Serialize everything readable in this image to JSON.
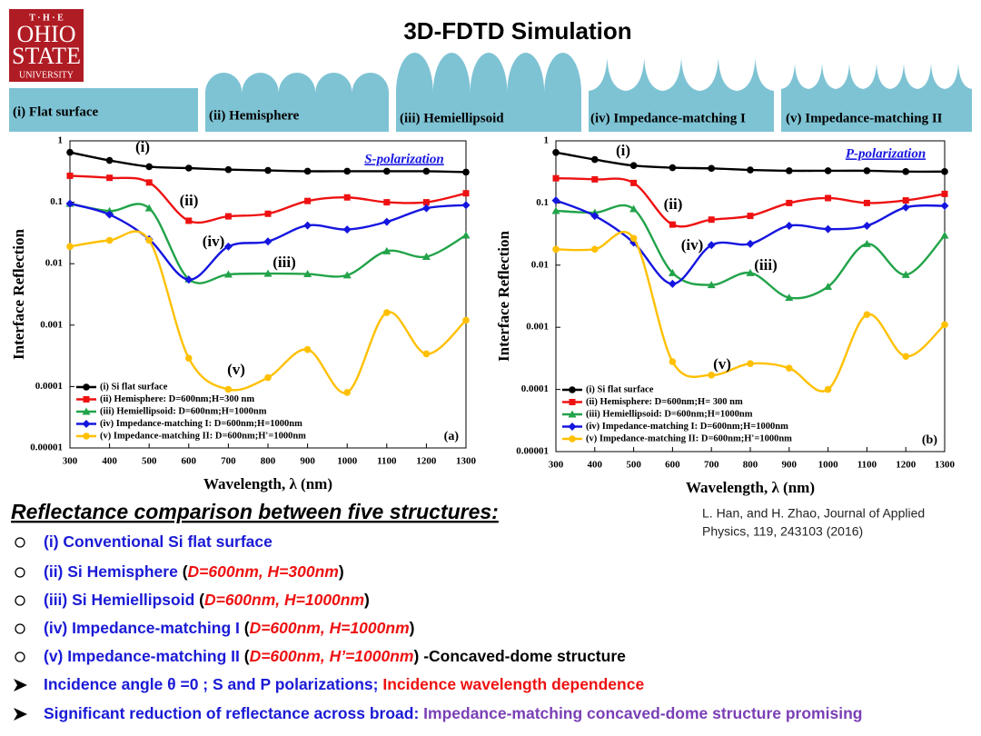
{
  "title": "3D-FDTD Simulation",
  "logo": [
    "T · H · E",
    "OHIO",
    "STATE",
    "UNIVERSITY"
  ],
  "structures": [
    "(i) Flat surface",
    "(ii) Hemisphere",
    "(iii) Hemiellipsoid",
    "(iv) Impedance-matching I",
    "(v) Impedance-matching II"
  ],
  "chart_data": [
    {
      "type": "line",
      "xlabel": "Wavelength, λ (nm)",
      "ylabel": "Interface Reflection",
      "ylog": true,
      "xlim": [
        300,
        1300
      ],
      "xticks": [
        300,
        400,
        500,
        600,
        700,
        800,
        900,
        1000,
        1100,
        1200,
        1300
      ],
      "ylim": [
        1e-05,
        1
      ],
      "yticks": [
        1e-05,
        0.0001,
        0.001,
        0.01,
        0.1,
        1
      ],
      "x": [
        300,
        400,
        500,
        600,
        700,
        800,
        900,
        1000,
        1100,
        1200,
        1300
      ],
      "legend": "lower left",
      "series": [
        {
          "name": "(i) Si flat surface",
          "color": "#000000",
          "marker": "circle",
          "values": [
            0.65,
            0.48,
            0.38,
            0.36,
            0.34,
            0.33,
            0.32,
            0.32,
            0.32,
            0.32,
            0.31
          ]
        },
        {
          "name": "(ii) Hemisphere: D=600nm;H=300 nm",
          "color": "#ee1111",
          "marker": "square",
          "values": [
            0.27,
            0.25,
            0.21,
            0.05,
            0.059,
            0.065,
            0.105,
            0.12,
            0.1,
            0.1,
            0.14
          ]
        },
        {
          "name": "(iii) Hemiellipsoid: D=600nm;H=1000nm",
          "color": "#22a34a",
          "marker": "triangle",
          "values": [
            0.095,
            0.072,
            0.08,
            0.0056,
            0.0067,
            0.0069,
            0.0068,
            0.0065,
            0.016,
            0.013,
            0.029
          ]
        },
        {
          "name": "(iv) Impedance-matching I: D=600nm;H=1000nm",
          "color": "#1515e0",
          "marker": "diamond",
          "values": [
            0.095,
            0.063,
            0.025,
            0.0055,
            0.019,
            0.023,
            0.042,
            0.036,
            0.048,
            0.08,
            0.09
          ]
        },
        {
          "name": "(v) Impedance-matching II: D=600nm;H'=1000nm",
          "color": "#ffc000",
          "marker": "circle",
          "values": [
            0.019,
            0.024,
            0.024,
            0.00029,
            9e-05,
            0.00014,
            0.0004,
            8e-05,
            0.0016,
            0.00034,
            0.0012
          ]
        }
      ],
      "annotations": [
        "(i)",
        "(ii)",
        "(iv)",
        "(iii)",
        "(v)"
      ],
      "polarization": "S-polarization",
      "panel_label": "(a)"
    },
    {
      "type": "line",
      "xlabel": "Wavelength, λ (nm)",
      "ylabel": "Interface Reflection",
      "ylog": true,
      "xlim": [
        300,
        1300
      ],
      "xticks": [
        300,
        400,
        500,
        600,
        700,
        800,
        900,
        1000,
        1100,
        1200,
        1300
      ],
      "ylim": [
        1e-05,
        1
      ],
      "yticks": [
        1e-05,
        0.0001,
        0.001,
        0.01,
        0.1,
        1
      ],
      "x": [
        300,
        400,
        500,
        600,
        700,
        800,
        900,
        1000,
        1100,
        1200,
        1300
      ],
      "legend": "lower left",
      "series": [
        {
          "name": "(i) Si flat surface",
          "color": "#000000",
          "marker": "circle",
          "values": [
            0.65,
            0.5,
            0.4,
            0.37,
            0.36,
            0.34,
            0.33,
            0.33,
            0.33,
            0.32,
            0.32
          ]
        },
        {
          "name": "(ii) Hemisphere: D=600nm;H= 300 nm",
          "color": "#ee1111",
          "marker": "square",
          "values": [
            0.25,
            0.24,
            0.21,
            0.045,
            0.054,
            0.062,
            0.1,
            0.12,
            0.1,
            0.11,
            0.14
          ]
        },
        {
          "name": "(iii) Hemiellipsoid: D=600nm;H=1000nm",
          "color": "#22a34a",
          "marker": "triangle",
          "values": [
            0.075,
            0.07,
            0.08,
            0.0075,
            0.0048,
            0.0075,
            0.003,
            0.0045,
            0.022,
            0.007,
            0.03
          ]
        },
        {
          "name": "(iv) Impedance-matching I: D=600nm;H=1000nm",
          "color": "#1515e0",
          "marker": "diamond",
          "values": [
            0.11,
            0.062,
            0.023,
            0.005,
            0.021,
            0.022,
            0.043,
            0.038,
            0.043,
            0.085,
            0.09
          ]
        },
        {
          "name": "(v) Impedance-matching II: D=600nm;H'=1000nm",
          "color": "#ffc000",
          "marker": "circle",
          "values": [
            0.018,
            0.018,
            0.027,
            0.00028,
            0.00017,
            0.00026,
            0.00022,
            0.0001,
            0.0016,
            0.00034,
            0.0011
          ]
        }
      ],
      "annotations": [
        "(i)",
        "(ii)",
        "(iv)",
        "(iii)",
        "(v)"
      ],
      "polarization": "P-polarization",
      "panel_label": "(b)"
    }
  ],
  "heading": "Reflectance comparison between five structures:",
  "citation": [
    "L. Han, and H. Zhao, Journal of Applied",
    "Physics, 119, 243103 (2016)"
  ],
  "bullets": [
    {
      "bullet": "circle",
      "segments": [
        {
          "text": "(i) Conventional Si flat surface",
          "color": "#1a1ad6"
        }
      ]
    },
    {
      "bullet": "circle",
      "segments": [
        {
          "text": "(ii) Si Hemisphere ",
          "color": "#1a1ad6"
        },
        {
          "text": "(",
          "color": "#000000"
        },
        {
          "text": "D=600nm, H=300nm",
          "color": "#ee1111",
          "italic": true
        },
        {
          "text": ")",
          "color": "#000000"
        }
      ]
    },
    {
      "bullet": "circle",
      "segments": [
        {
          "text": "(iii) Si Hemiellipsoid ",
          "color": "#1a1ad6"
        },
        {
          "text": "(",
          "color": "#000000"
        },
        {
          "text": "D=600nm, H=1000nm",
          "color": "#ee1111",
          "italic": true
        },
        {
          "text": ")",
          "color": "#000000"
        }
      ]
    },
    {
      "bullet": "circle",
      "segments": [
        {
          "text": "(iv) Impedance-matching I ",
          "color": "#1a1ad6"
        },
        {
          "text": "(",
          "color": "#000000"
        },
        {
          "text": "D=600nm, H=1000nm",
          "color": "#ee1111",
          "italic": true
        },
        {
          "text": ")",
          "color": "#000000"
        }
      ]
    },
    {
      "bullet": "circle",
      "segments": [
        {
          "text": "(v) Impedance-matching II ",
          "color": "#1a1ad6"
        },
        {
          "text": "(",
          "color": "#000000"
        },
        {
          "text": "D=600nm, H’=1000nm",
          "color": "#ee1111",
          "italic": true
        },
        {
          "text": ") -Concaved-dome structure",
          "color": "#000000"
        }
      ]
    },
    {
      "bullet": "arrow",
      "segments": [
        {
          "text": "Incidence angle θ =0  ; S and P polarizations; ",
          "color": "#1a1ad6"
        },
        {
          "text": "Incidence wavelength dependence",
          "color": "#ee1111"
        }
      ]
    },
    {
      "bullet": "arrow",
      "segments": [
        {
          "text": "Significant reduction of reflectance across broad: ",
          "color": "#1a1ad6"
        },
        {
          "text": "Impedance-matching concaved-dome structure promising",
          "color": "#7a3fb5"
        }
      ]
    }
  ]
}
